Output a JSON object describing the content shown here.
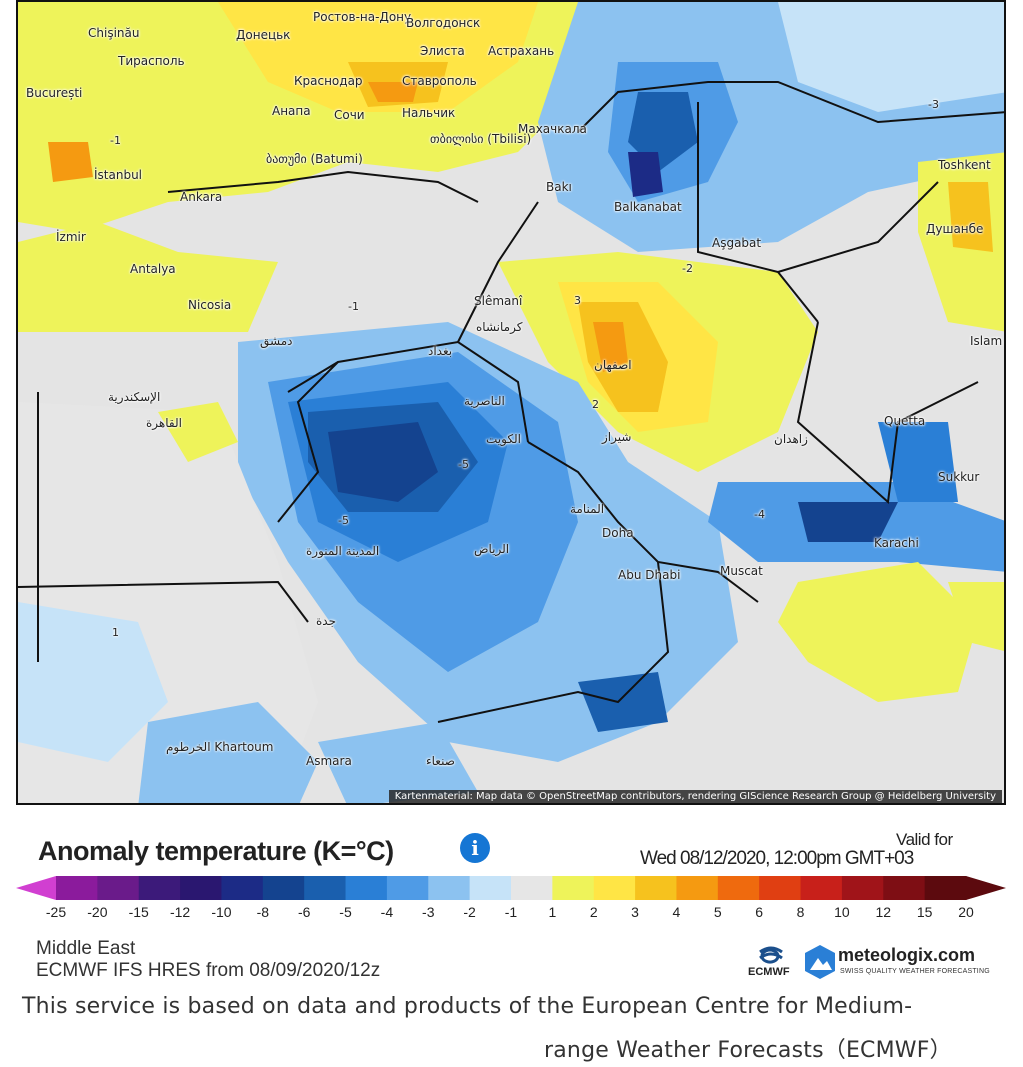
{
  "map": {
    "attribution": "Kartenmaterial: Map data © OpenStreetMap contributors, rendering GIScience Research Group @ Heidelberg University",
    "cities": [
      "Chişinău",
      "Тирасполь",
      "Донецьк",
      "Ростов-на-Дону",
      "Волгодонск",
      "Элиста",
      "Астрахань",
      "București",
      "Краснодар",
      "Ставрополь",
      "Анапа",
      "Сочи",
      "Нальчик",
      "Махачкала",
      "ბათუმი (Batumi)",
      "თბილისი (Tbilisi)",
      "İstanbul",
      "Ankara",
      "Bakı",
      "Balkanabat",
      "Aşgabat",
      "Toshkent",
      "Душанбе",
      "İzmir",
      "Antalya",
      "Nicosia",
      "Slêmanî",
      "كرمانشاه",
      "Islam",
      "دمشق",
      "بغداد",
      "اصفهان",
      "الإسكندرية",
      "القاهرة",
      "الناصرية",
      "الكويت",
      "شيراز",
      "زاهدان",
      "Quetta",
      "Sukkur",
      "المنامة",
      "Doha",
      "Abu Dhabi",
      "Muscat",
      "Karachi",
      "المدينة المنورة",
      "الرياض",
      "جدة",
      "الخرطوم Khartoum",
      "Asmara",
      "صنعاء"
    ],
    "contour_labels": [
      "-1",
      "-2",
      "-3",
      "-4",
      "-5",
      "1",
      "2",
      "3"
    ]
  },
  "header": {
    "title": "Anomaly temperature (K=°C)",
    "info_icon": "info-icon",
    "valid_for": "Valid for",
    "valid_time": "Wed 08/12/2020, 12:00pm GMT+03"
  },
  "legend": {
    "ticks": [
      "-25",
      "-20",
      "-15",
      "-12",
      "-10",
      "-8",
      "-6",
      "-5",
      "-4",
      "-3",
      "-2",
      "-1",
      "1",
      "2",
      "3",
      "4",
      "5",
      "6",
      "8",
      "10",
      "12",
      "15",
      "20"
    ],
    "colors": [
      "#d13fd1",
      "#8b1b9c",
      "#6a1b8a",
      "#3c1a7a",
      "#2a1770",
      "#1c2b86",
      "#14438f",
      "#1a5fae",
      "#2a7fd6",
      "#4f9be6",
      "#8cc2f0",
      "#c6e3f8",
      "#e6e6e6",
      "#eef35a",
      "#ffe545",
      "#f6c21e",
      "#f59a11",
      "#ef6a0e",
      "#e03f12",
      "#c8201a",
      "#a01419",
      "#7e0e14",
      "#5c0a0e"
    ]
  },
  "footer": {
    "region": "Middle East",
    "model": "ECMWF IFS HRES from 08/09/2020/12z",
    "ecmwf_label": "ECMWF",
    "brand_name": "meteologix.com",
    "brand_tagline": "SWISS QUALITY WEATHER FORECASTING",
    "service_line1": "This service is based on data and products of the European Centre for Medium-",
    "service_line2": "range Weather Forecasts（ECMWF）"
  }
}
